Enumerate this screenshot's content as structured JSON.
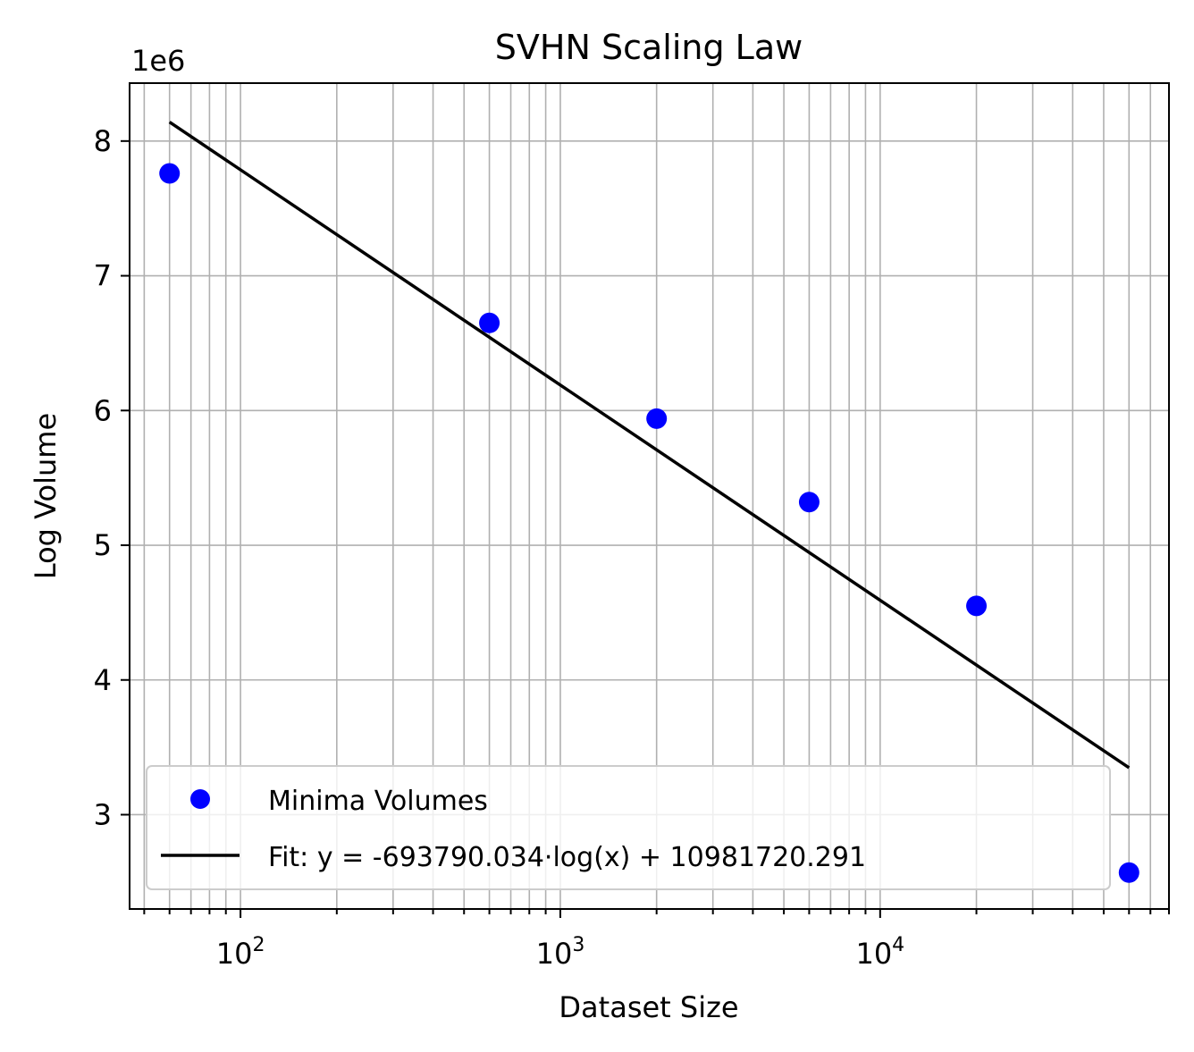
{
  "chart_data": {
    "type": "scatter",
    "title": "SVHN Scaling Law",
    "xlabel": "Dataset Size",
    "ylabel": "Log Volume",
    "xscale": "log",
    "xlim": [
      45,
      80000
    ],
    "ylim": [
      2.3,
      8.43
    ],
    "y_offset_label": "1e6",
    "grid": true,
    "legend_position": "lower-left",
    "x_ticks": [
      {
        "value": 100,
        "base": "10",
        "exp": "2"
      },
      {
        "value": 1000,
        "base": "10",
        "exp": "3"
      },
      {
        "value": 10000,
        "base": "10",
        "exp": "4"
      }
    ],
    "y_ticks": [
      3,
      4,
      5,
      6,
      7,
      8
    ],
    "series": [
      {
        "name": "Minima Volumes",
        "kind": "scatter",
        "color": "#0000ff",
        "x": [
          60,
          600,
          2000,
          6000,
          20000,
          60000
        ],
        "y": [
          7.76,
          6.65,
          5.94,
          5.32,
          4.55,
          2.57
        ]
      },
      {
        "name": "Fit: y = -693790.034·log(x) + 10981720.291",
        "kind": "line",
        "color": "#000000",
        "slope": -0.693790034,
        "intercept": 10.981720291,
        "x_range": [
          60,
          60000
        ]
      }
    ]
  }
}
